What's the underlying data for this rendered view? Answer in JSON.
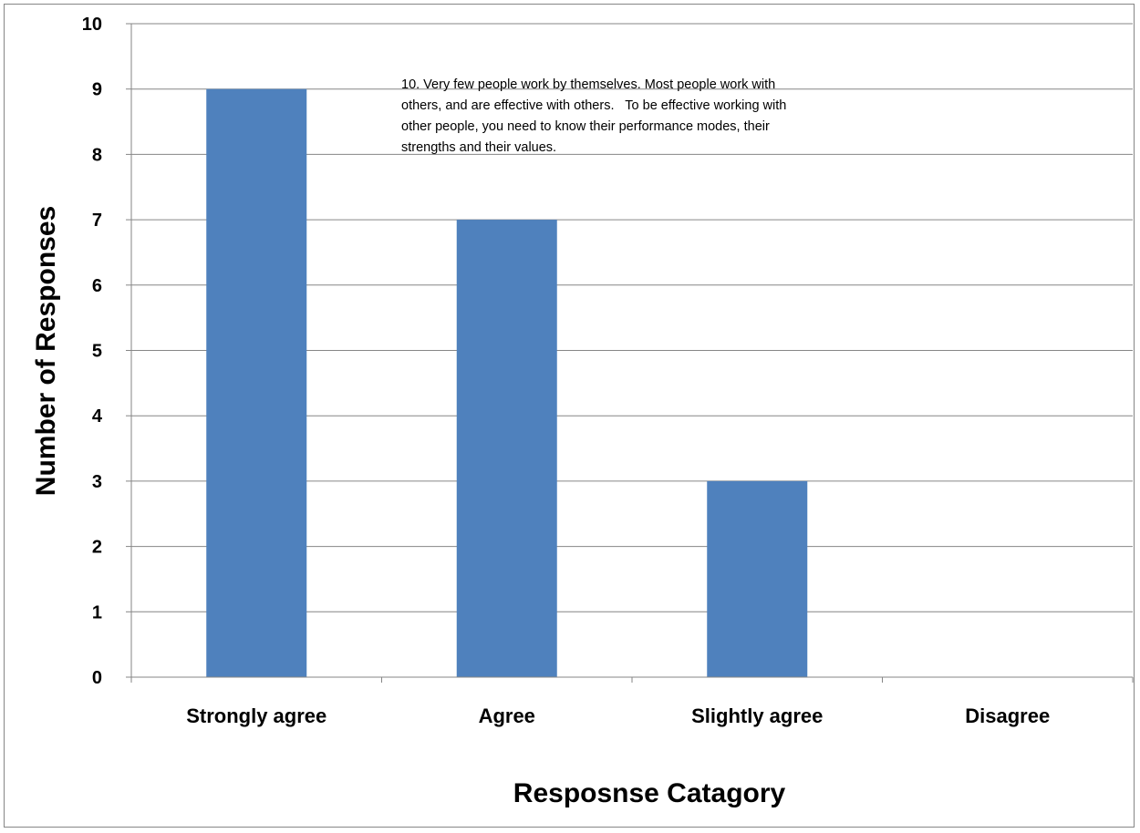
{
  "chart_data": {
    "type": "bar",
    "categories": [
      "Strongly agree",
      "Agree",
      "Slightly agree",
      "Disagree"
    ],
    "values": [
      9,
      7,
      3,
      0
    ],
    "title": "",
    "xlabel": "Resposnse Catagory",
    "ylabel": "Number of Responses",
    "ylim": [
      0,
      10
    ],
    "yticks": [
      "0",
      "1",
      "2",
      "3",
      "4",
      "5",
      "6",
      "7",
      "8",
      "9",
      "10"
    ],
    "grid": true,
    "annotation": "10. Very few people work by themselves. Most people work with\nothers, and are effective with others.   To be effective working with\nother people, you need to know their performance modes, their\nstrengths and their values.",
    "bar_color": "#4F81BD",
    "gridline_color": "#868686"
  }
}
